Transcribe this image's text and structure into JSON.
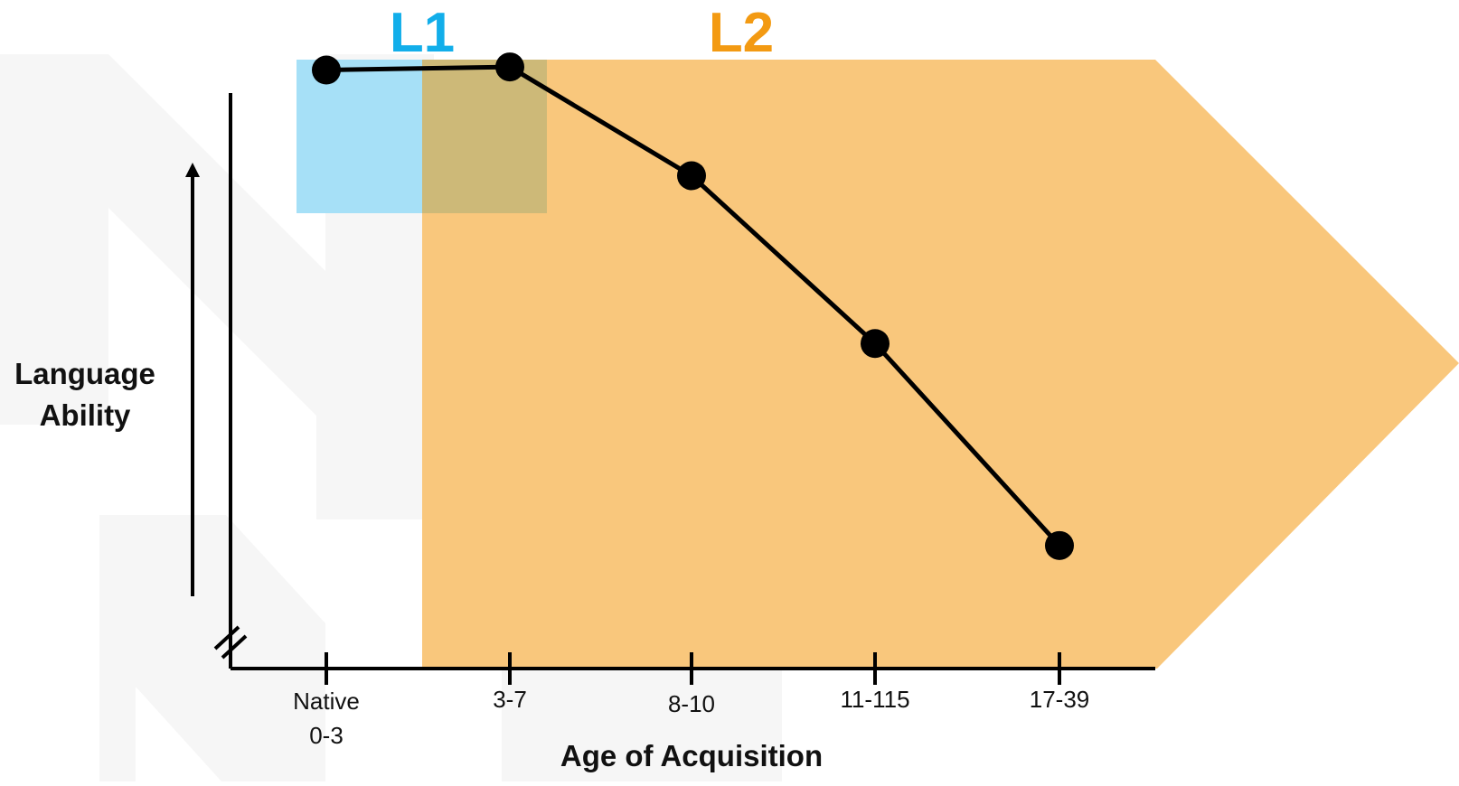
{
  "chart_data": {
    "type": "line",
    "title": "",
    "xlabel": "Age of Acquisition",
    "ylabel": [
      "Language",
      "Ability"
    ],
    "categories": [
      [
        "Native",
        "0-3"
      ],
      [
        "3-7"
      ],
      [
        "8-10"
      ],
      [
        "11-115"
      ],
      [
        "17-39"
      ]
    ],
    "values": [
      0.96,
      0.965,
      0.79,
      0.52,
      0.195
    ],
    "ylim": [
      0,
      1
    ],
    "grid": false,
    "regions": [
      {
        "label": "L1",
        "color": "#12aeea",
        "fill": "#a6e0f7"
      },
      {
        "label": "L2",
        "color": "#f39a12",
        "fill": "#f9c77c"
      }
    ],
    "overlap_fill": "#cdb978",
    "line_color": "#000000",
    "watermark_color": "#f6f6f6"
  }
}
